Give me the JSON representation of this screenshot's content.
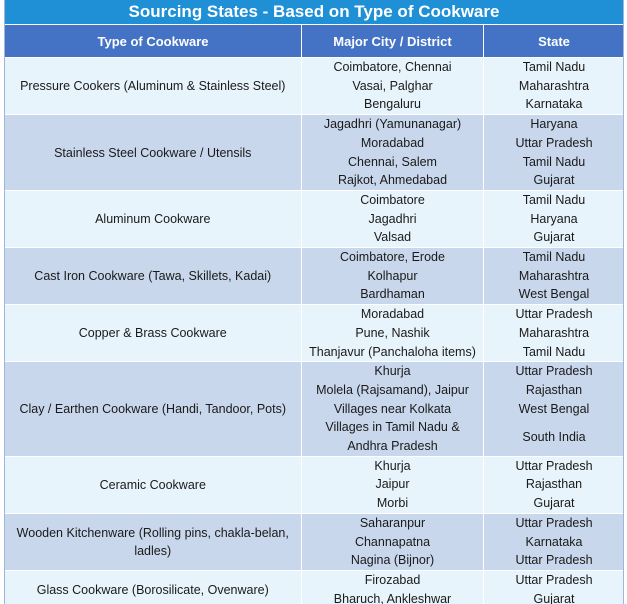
{
  "title": "Sourcing States - Based on Type of Cookware",
  "headers": [
    "Type of Cookware",
    "Major City / District",
    "State"
  ],
  "groups": [
    {
      "type": "Pressure Cookers (Aluminum & Stainless Steel)",
      "entries": [
        [
          "Coimbatore, Chennai",
          "Tamil Nadu"
        ],
        [
          "Vasai, Palghar",
          "Maharashtra"
        ],
        [
          "Bengaluru",
          "Karnataka"
        ]
      ]
    },
    {
      "type": "Stainless Steel Cookware / Utensils",
      "entries": [
        [
          "Jagadhri (Yamunanagar)",
          "Haryana"
        ],
        [
          "Moradabad",
          "Uttar Pradesh"
        ],
        [
          "Chennai, Salem",
          "Tamil Nadu"
        ],
        [
          "Rajkot, Ahmedabad",
          "Gujarat"
        ]
      ]
    },
    {
      "type": "Aluminum Cookware",
      "entries": [
        [
          "Coimbatore",
          "Tamil Nadu"
        ],
        [
          "Jagadhri",
          "Haryana"
        ],
        [
          "Valsad",
          "Gujarat"
        ]
      ]
    },
    {
      "type": "Cast Iron Cookware (Tawa, Skillets, Kadai)",
      "entries": [
        [
          "Coimbatore, Erode",
          "Tamil Nadu"
        ],
        [
          "Kolhapur",
          "Maharashtra"
        ],
        [
          "Bardhaman",
          "West Bengal"
        ]
      ]
    },
    {
      "type": "Copper & Brass Cookware",
      "entries": [
        [
          "Moradabad",
          "Uttar Pradesh"
        ],
        [
          "Pune, Nashik",
          "Maharashtra"
        ],
        [
          "Thanjavur (Panchaloha items)",
          "Tamil Nadu"
        ]
      ]
    },
    {
      "type": "Clay / Earthen Cookware (Handi, Tandoor, Pots)",
      "entries": [
        [
          "Khurja",
          "Uttar Pradesh"
        ],
        [
          "Molela (Rajsamand), Jaipur",
          "Rajasthan"
        ],
        [
          "Villages near Kolkata",
          "West Bengal"
        ],
        [
          "Villages in Tamil Nadu & Andhra Pradesh",
          "South India"
        ]
      ]
    },
    {
      "type": "Ceramic Cookware",
      "entries": [
        [
          "Khurja",
          "Uttar Pradesh"
        ],
        [
          "Jaipur",
          "Rajasthan"
        ],
        [
          "Morbi",
          "Gujarat"
        ]
      ]
    },
    {
      "type": "Wooden Kitchenware (Rolling pins, chakla-belan, ladles)",
      "entries": [
        [
          "Saharanpur",
          "Uttar Pradesh"
        ],
        [
          "Channapatna",
          "Karnataka"
        ],
        [
          "Nagina (Bijnor)",
          "Uttar Pradesh"
        ]
      ]
    },
    {
      "type": "Glass Cookware (Borosilicate, Ovenware)",
      "entries": [
        [
          "Firozabad",
          "Uttar Pradesh"
        ],
        [
          "Bharuch, Ankleshwar",
          "Gujarat"
        ]
      ]
    }
  ]
}
